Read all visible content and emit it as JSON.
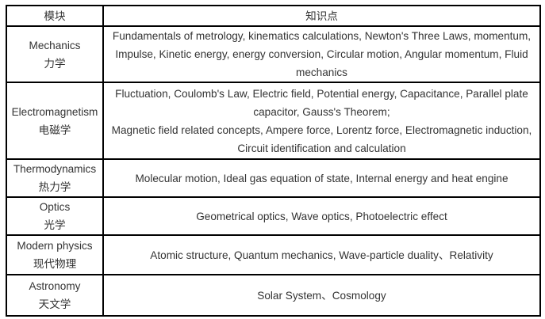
{
  "header": {
    "module": "模块",
    "knowledge": "知识点"
  },
  "rows": [
    {
      "en": "Mechanics",
      "zh": "力学",
      "points": [
        "Fundamentals of metrology, kinematics calculations, Newton's Three Laws, momentum, Impulse, Kinetic energy, energy conversion, Circular motion, Angular momentum, Fluid mechanics"
      ]
    },
    {
      "en": "Electromagnetism",
      "zh": "电磁学",
      "points": [
        "Fluctuation, Coulomb's Law, Electric  field, Potential energy, Capacitance, Parallel plate capacitor, Gauss's  Theorem;",
        "Magnetic field related concepts, Ampere force, Lorentz force, Electromagnetic induction, Circuit identification and  calculation"
      ]
    },
    {
      "en": "Thermodynamics",
      "zh": "热力学",
      "points": [
        "Molecular motion, Ideal gas equation  of state, Internal energy and heat engine"
      ]
    },
    {
      "en": "Optics",
      "zh": "光学",
      "points": [
        "Geometrical optics, Wave optics, Photoelectric  effect"
      ]
    },
    {
      "en": "Modern physics",
      "zh": "现代物理",
      "points": [
        "Atomic structure, Quantum mechanics,  Wave-particle duality、Relativity"
      ]
    },
    {
      "en": "Astronomy",
      "zh": "天文学",
      "points": [
        "Solar System、Cosmology"
      ]
    }
  ]
}
